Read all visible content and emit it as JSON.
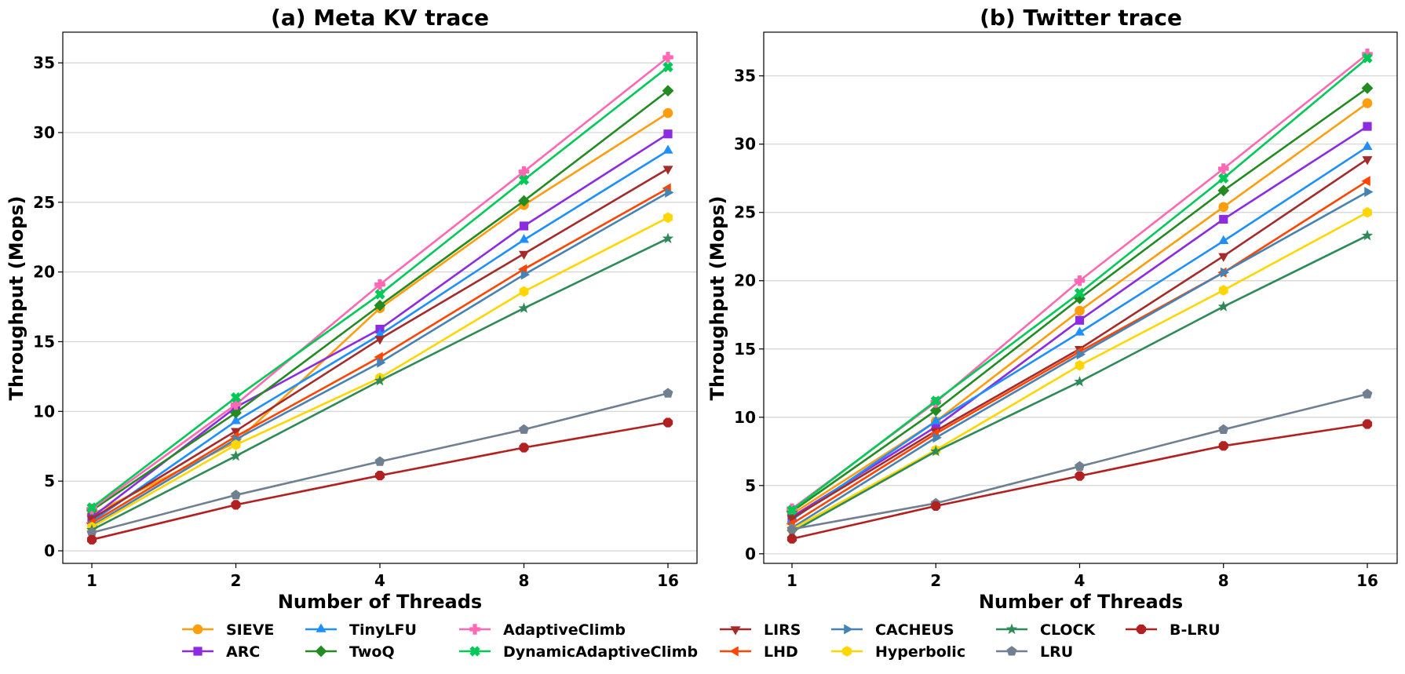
{
  "chart_data": [
    {
      "type": "line",
      "title": "(a) Meta KV trace",
      "xlabel": "Number of Threads",
      "ylabel": "Throughput (Mops)",
      "x": [
        1,
        2,
        4,
        8,
        16
      ],
      "x_tick_labels": [
        "1",
        "2",
        "4",
        "8",
        "16"
      ],
      "x_scale": "log2",
      "y_ticks": [
        0,
        5,
        10,
        15,
        20,
        25,
        30,
        35
      ],
      "ylim": [
        -0.9,
        37.2
      ],
      "grid": "horizontal",
      "series": [
        {
          "name": "SIEVE",
          "values": [
            2.6,
            7.8,
            17.4,
            24.8,
            31.4
          ]
        },
        {
          "name": "ARC",
          "values": [
            2.4,
            10.3,
            15.9,
            23.3,
            29.9
          ]
        },
        {
          "name": "TinyLFU",
          "values": [
            2.1,
            9.3,
            15.5,
            22.3,
            28.7
          ]
        },
        {
          "name": "TwoQ",
          "values": [
            2.9,
            9.9,
            17.6,
            25.1,
            33.0
          ]
        },
        {
          "name": "AdaptiveClimb",
          "values": [
            3.0,
            10.5,
            19.1,
            27.2,
            35.4
          ]
        },
        {
          "name": "DynamicAdaptiveClimb",
          "values": [
            3.1,
            11.0,
            18.4,
            26.6,
            34.7
          ]
        },
        {
          "name": "LIRS",
          "values": [
            2.3,
            8.6,
            15.2,
            21.3,
            27.4
          ]
        },
        {
          "name": "LHD",
          "values": [
            2.0,
            8.2,
            13.9,
            20.2,
            26.0
          ]
        },
        {
          "name": "CACHEUS",
          "values": [
            1.8,
            8.0,
            13.5,
            19.8,
            25.7
          ]
        },
        {
          "name": "Hyperbolic",
          "values": [
            1.7,
            7.6,
            12.4,
            18.6,
            23.9
          ]
        },
        {
          "name": "CLOCK",
          "values": [
            1.5,
            6.8,
            12.2,
            17.4,
            22.4
          ]
        },
        {
          "name": "LRU",
          "values": [
            1.3,
            4.0,
            6.4,
            8.7,
            11.3
          ]
        },
        {
          "name": "B-LRU",
          "values": [
            0.8,
            3.3,
            5.4,
            7.4,
            9.2
          ]
        }
      ]
    },
    {
      "type": "line",
      "title": "(b) Twitter trace",
      "xlabel": "Number of Threads",
      "ylabel": "Throughput (Mops)",
      "x": [
        1,
        2,
        4,
        8,
        16
      ],
      "x_tick_labels": [
        "1",
        "2",
        "4",
        "8",
        "16"
      ],
      "x_scale": "log2",
      "y_ticks": [
        0,
        5,
        10,
        15,
        20,
        25,
        30,
        35
      ],
      "ylim": [
        -0.7,
        38.2
      ],
      "grid": "horizontal",
      "series": [
        {
          "name": "SIEVE",
          "values": [
            2.9,
            9.7,
            17.8,
            25.4,
            33.0
          ]
        },
        {
          "name": "ARC",
          "values": [
            2.7,
            9.3,
            17.1,
            24.5,
            31.3
          ]
        },
        {
          "name": "TinyLFU",
          "values": [
            2.5,
            9.7,
            16.2,
            22.9,
            29.8
          ]
        },
        {
          "name": "TwoQ",
          "values": [
            3.1,
            10.5,
            18.7,
            26.6,
            34.1
          ]
        },
        {
          "name": "AdaptiveClimb",
          "values": [
            3.3,
            11.1,
            20.0,
            28.2,
            36.6
          ]
        },
        {
          "name": "DynamicAdaptiveClimb",
          "values": [
            3.2,
            11.2,
            19.1,
            27.5,
            36.3
          ]
        },
        {
          "name": "LIRS",
          "values": [
            2.6,
            9.0,
            15.0,
            21.8,
            28.9
          ]
        },
        {
          "name": "LHD",
          "values": [
            2.2,
            8.8,
            14.8,
            20.6,
            27.3
          ]
        },
        {
          "name": "CACHEUS",
          "values": [
            1.9,
            8.5,
            14.6,
            20.6,
            26.5
          ]
        },
        {
          "name": "Hyperbolic",
          "values": [
            1.8,
            7.6,
            13.8,
            19.3,
            25.0
          ]
        },
        {
          "name": "CLOCK",
          "values": [
            1.6,
            7.5,
            12.6,
            18.1,
            23.3
          ]
        },
        {
          "name": "LRU",
          "values": [
            1.8,
            3.7,
            6.4,
            9.1,
            11.7
          ]
        },
        {
          "name": "B-LRU",
          "values": [
            1.1,
            3.5,
            5.7,
            7.9,
            9.5
          ]
        }
      ]
    }
  ],
  "series_style": {
    "SIEVE": {
      "color": "#ff9e0d",
      "marker": "circle"
    },
    "ARC": {
      "color": "#8c2be2",
      "marker": "square"
    },
    "TinyLFU": {
      "color": "#1e8fff",
      "marker": "triangle-up"
    },
    "TwoQ": {
      "color": "#238b22",
      "marker": "diamond"
    },
    "AdaptiveClimb": {
      "color": "#ff69b3",
      "marker": "plus-filled"
    },
    "DynamicAdaptiveClimb": {
      "color": "#00c957",
      "marker": "x-filled"
    },
    "LIRS": {
      "color": "#a52b2b",
      "marker": "triangle-down"
    },
    "LHD": {
      "color": "#ff4500",
      "marker": "triangle-left"
    },
    "CACHEUS": {
      "color": "#4682b4",
      "marker": "triangle-right"
    },
    "Hyperbolic": {
      "color": "#ffd600",
      "marker": "hexagon"
    },
    "CLOCK": {
      "color": "#2e8a57",
      "marker": "star"
    },
    "LRU": {
      "color": "#708090",
      "marker": "pentagon"
    },
    "B-LRU": {
      "color": "#b22121",
      "marker": "octagon"
    }
  },
  "legend": {
    "placement": "bottom-center",
    "columns": [
      [
        "SIEVE",
        "ARC"
      ],
      [
        "TinyLFU",
        "TwoQ"
      ],
      [
        "AdaptiveClimb",
        "DynamicAdaptiveClimb"
      ],
      [
        "LIRS",
        "LHD"
      ],
      [
        "CACHEUS",
        "Hyperbolic"
      ],
      [
        "CLOCK",
        "LRU"
      ],
      [
        "B-LRU"
      ]
    ]
  }
}
